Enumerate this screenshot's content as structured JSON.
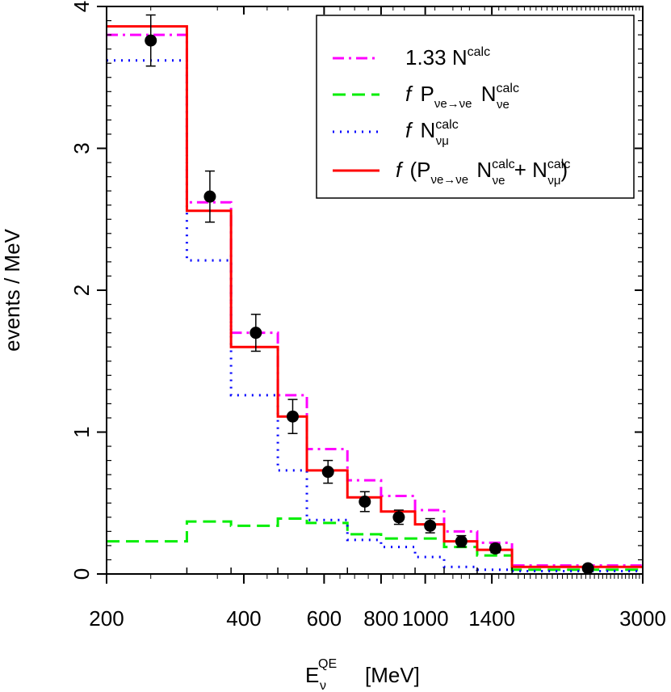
{
  "chart_data": {
    "type": "line",
    "xlabel": "E",
    "xlabel_sub": "ν",
    "xlabel_sup": "QE",
    "xlabel_unit": "[MeV]",
    "ylabel": "events / MeV",
    "ylim": [
      0,
      4
    ],
    "x_ticks": [
      "200",
      "400",
      "600",
      "800",
      "1000",
      "1400",
      "3000"
    ],
    "y_ticks": [
      "0",
      "1",
      "2",
      "3",
      "4"
    ],
    "bin_edges": [
      "200",
      "300",
      "375",
      "475",
      "550",
      "675",
      "800",
      "950",
      "1100",
      "1300",
      "1550",
      "3000"
    ],
    "series": [
      {
        "label_main": "1.33 N",
        "label_sup": "calc",
        "color": "#ff00ff",
        "dash": "dashdot",
        "values": [
          3.8,
          2.62,
          1.7,
          1.26,
          0.88,
          0.66,
          0.55,
          0.45,
          0.3,
          0.22,
          0.06
        ]
      },
      {
        "label_f": "f",
        "label_main": "P",
        "label_sub": "νe→νe",
        "label_main2": "N",
        "label_sup2": "calc",
        "label_sub2": "νe",
        "color": "#00ee00",
        "dash": "dashed",
        "values": [
          0.23,
          0.37,
          0.34,
          0.39,
          0.36,
          0.28,
          0.25,
          0.25,
          0.19,
          0.13,
          0.03
        ]
      },
      {
        "label_f": "f",
        "label_main": "N",
        "label_sup": "calc",
        "label_sub": "νμ",
        "color": "#0000ff",
        "dash": "dotted",
        "values": [
          3.62,
          2.21,
          1.26,
          0.73,
          0.38,
          0.24,
          0.19,
          0.12,
          0.05,
          0.03,
          0.02
        ]
      },
      {
        "label_f": "f",
        "label_open": "(P",
        "label_sub": "νe→νe",
        "label_main2": "N",
        "label_sup2": "calc",
        "label_sub2": "νe",
        "label_plus": "+ N",
        "label_sup3": "calc",
        "label_sub3": "νμ",
        "label_close": ")",
        "color": "#ff0000",
        "dash": "solid",
        "values": [
          3.86,
          2.56,
          1.6,
          1.11,
          0.73,
          0.54,
          0.44,
          0.35,
          0.23,
          0.17,
          0.05
        ]
      }
    ],
    "data_points": {
      "x": [
        250,
        337,
        425,
        512,
        612,
        737,
        875,
        1025,
        1200,
        1425,
        2275
      ],
      "y": [
        3.76,
        2.66,
        1.7,
        1.11,
        0.72,
        0.51,
        0.4,
        0.34,
        0.23,
        0.18,
        0.04
      ],
      "err": [
        0.18,
        0.18,
        0.13,
        0.12,
        0.08,
        0.07,
        0.05,
        0.05,
        0.04,
        0.03,
        0.02
      ]
    },
    "legend_position": "top-right"
  }
}
